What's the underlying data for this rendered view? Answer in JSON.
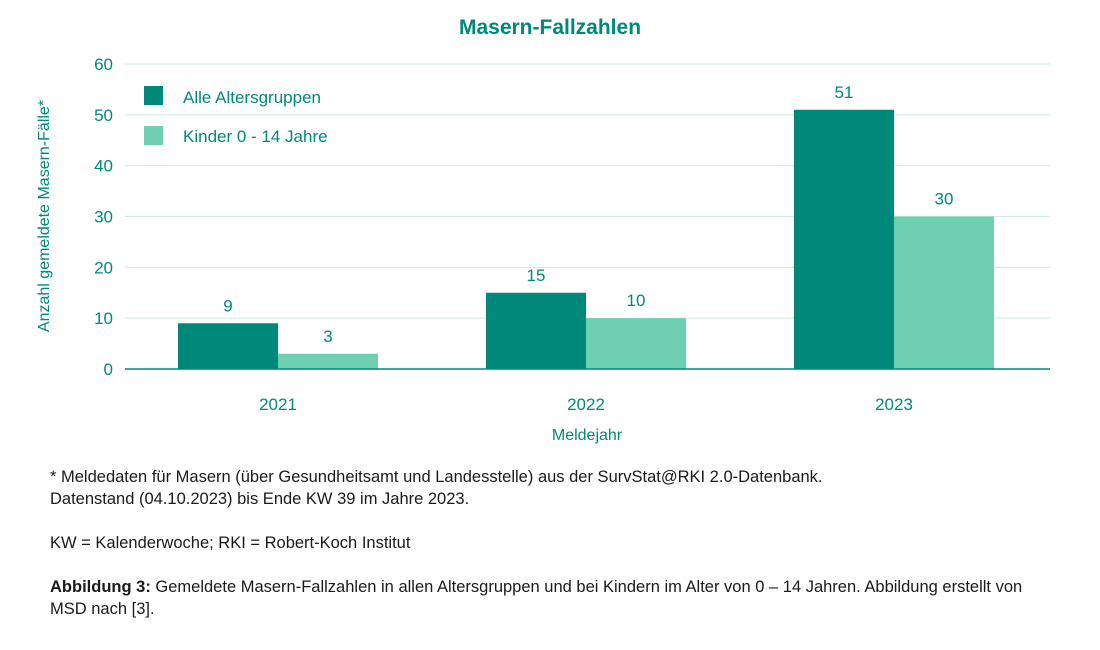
{
  "colors": {
    "accent": "#00897b",
    "series1": "#00897b",
    "series2": "#6ecfb1",
    "grid": "#cdece5",
    "text": "#1a1a1a"
  },
  "chart_data": {
    "type": "bar",
    "title": "Masern-Fallzahlen",
    "xlabel": "Meldejahr",
    "ylabel": "Anzahl gemeldete Masern-Fälle*",
    "categories": [
      "2021",
      "2022",
      "2023"
    ],
    "series": [
      {
        "name": "Alle Altersgruppen",
        "values": [
          9,
          15,
          51
        ]
      },
      {
        "name": "Kinder 0 - 14 Jahre",
        "values": [
          3,
          10,
          30
        ]
      }
    ],
    "ylim": [
      0,
      60
    ],
    "yticks": [
      0,
      10,
      20,
      30,
      40,
      50,
      60
    ],
    "grid": true,
    "legend": "top-left"
  },
  "notes": {
    "footnote_line1": "* Meldedaten für Masern (über Gesundheitsamt und Landesstelle) aus der SurvStat@RKI 2.0-Datenbank.",
    "footnote_line2": "Datenstand (04.10.2023) bis Ende KW 39 im Jahre 2023.",
    "abbreviations": "KW = Kalenderwoche; RKI = Robert-Koch Institut",
    "caption_label": "Abbildung 3:",
    "caption_text": " Gemeldete Masern-Fallzahlen in allen Altersgruppen und bei Kindern im Alter von 0 – 14 Jahren. Abbildung erstellt von MSD nach [3]."
  }
}
